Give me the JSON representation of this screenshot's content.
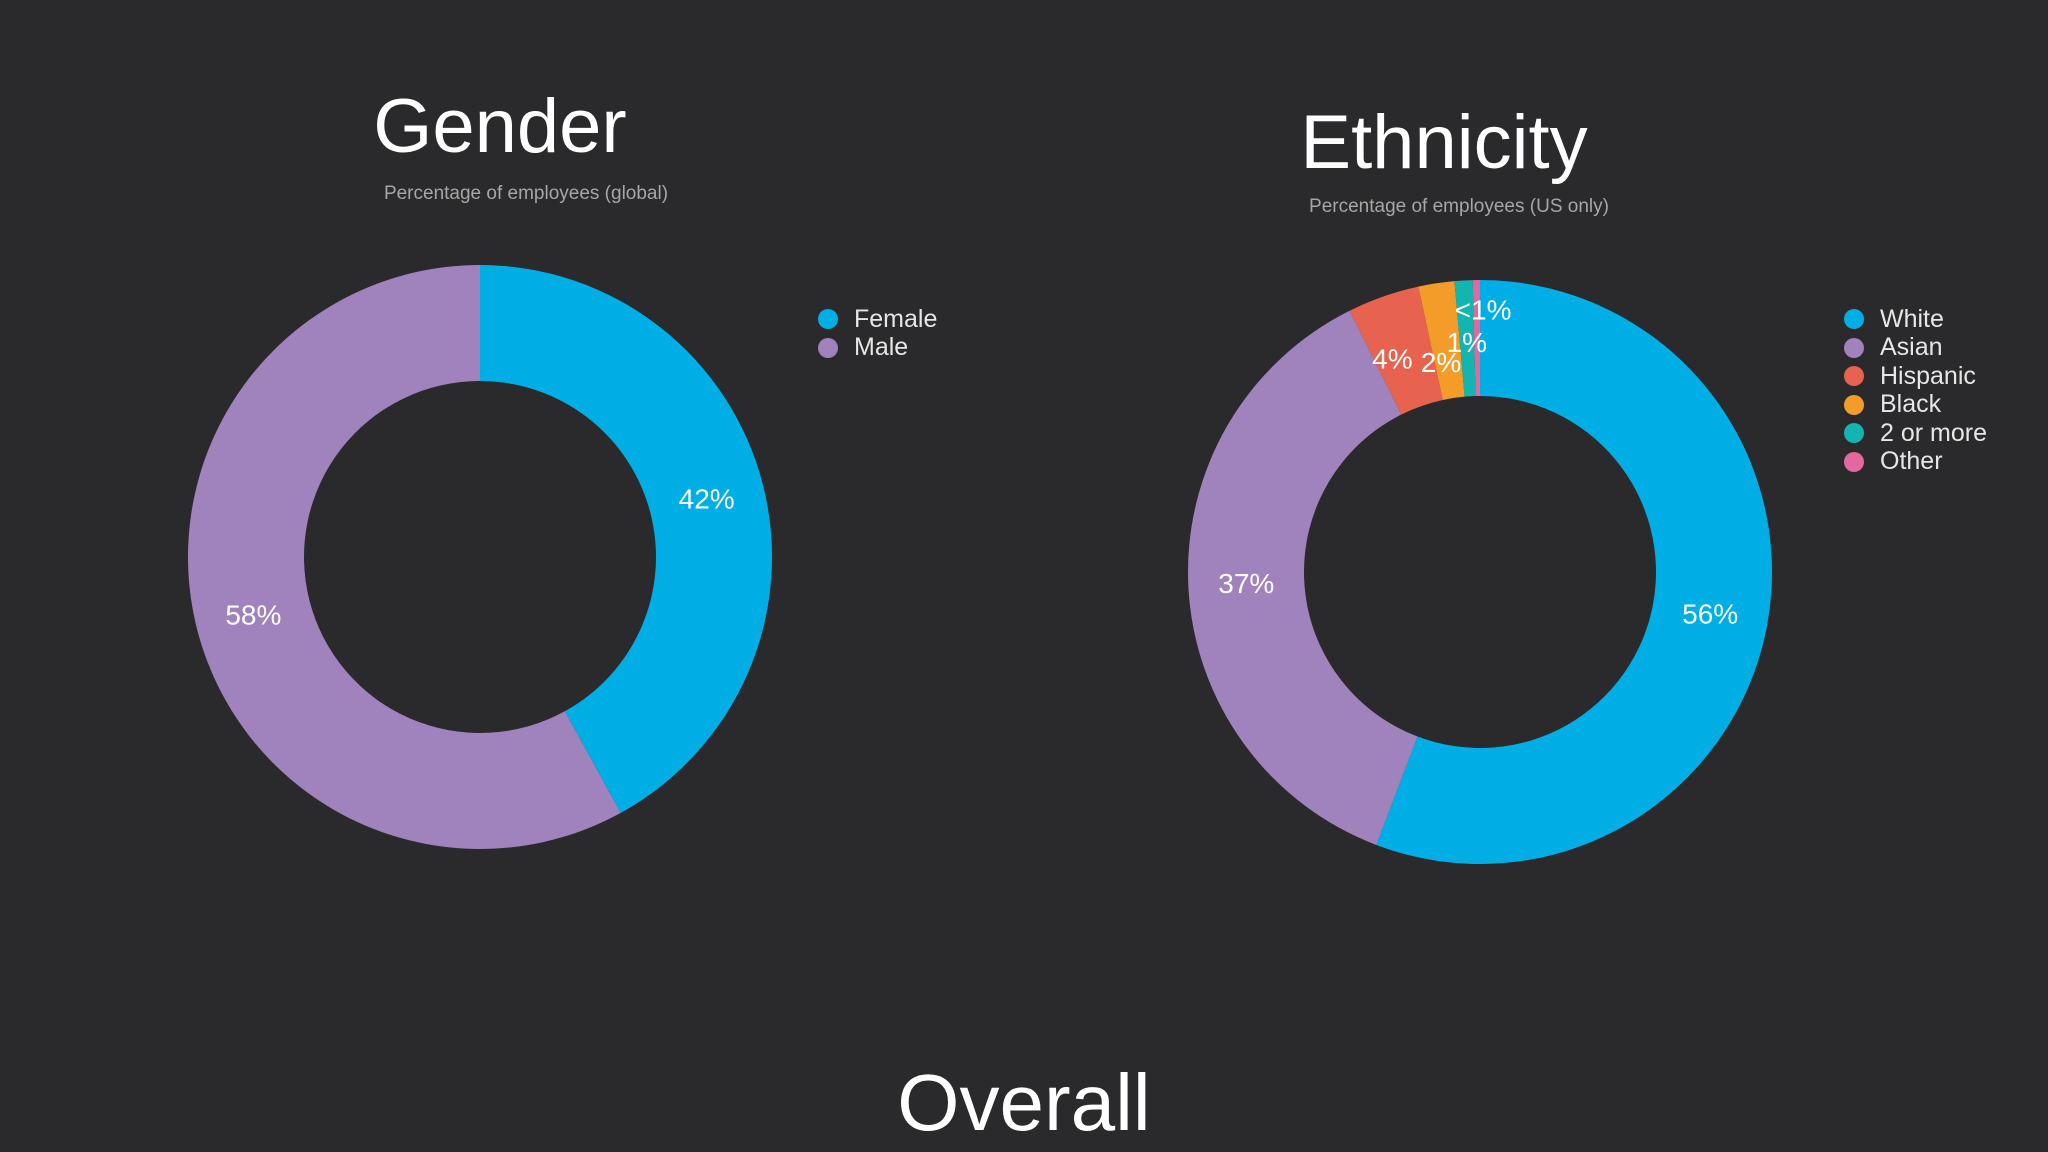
{
  "background_color": "#2a2a2c",
  "chart_data": [
    {
      "type": "pie",
      "variant": "donut",
      "title": "Gender",
      "subtitle": "Percentage of employees (global)",
      "start_angle_deg": 0,
      "direction": "clockwise",
      "slices": [
        {
          "name": "Female",
          "value": 42,
          "label": "42%",
          "color": "#00aee6"
        },
        {
          "name": "Male",
          "value": 58,
          "label": "58%",
          "color": "#a082bd"
        }
      ],
      "legend": {
        "placement": "right-top"
      }
    },
    {
      "type": "pie",
      "variant": "donut",
      "title": "Ethnicity",
      "subtitle": "Percentage of employees (US only)",
      "start_angle_deg": 0,
      "direction": "clockwise",
      "slices": [
        {
          "name": "White",
          "value": 56,
          "label": "56%",
          "color": "#00aee6"
        },
        {
          "name": "Asian",
          "value": 37,
          "label": "37%",
          "color": "#a082bd"
        },
        {
          "name": "Hispanic",
          "value": 4,
          "label": "4%",
          "color": "#e8634f"
        },
        {
          "name": "Black",
          "value": 2,
          "label": "2%",
          "color": "#f39c2a"
        },
        {
          "name": "2 or more",
          "value": 1,
          "label": "1%",
          "color": "#13b5b0"
        },
        {
          "name": "Other",
          "value": 0.4,
          "label": "<1%",
          "color": "#e4679e"
        }
      ],
      "legend": {
        "placement": "right-top"
      }
    }
  ],
  "section_heading": "Overall"
}
